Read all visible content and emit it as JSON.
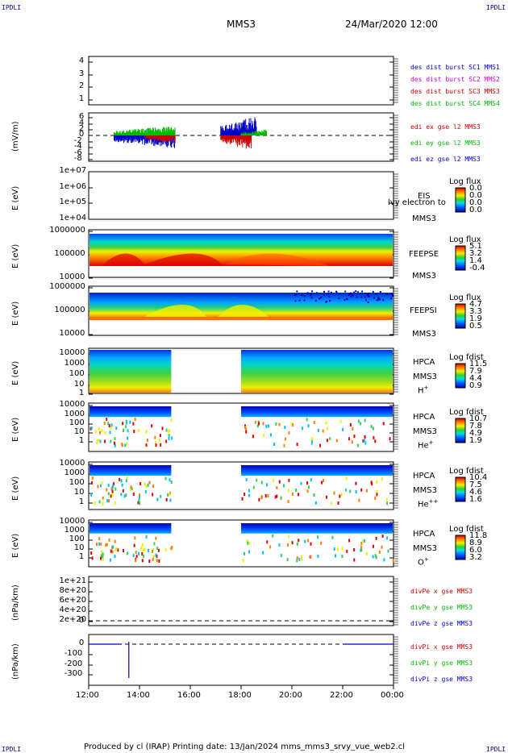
{
  "header": {
    "corner_tl": "IPDLI",
    "corner_tr": "IPDLI",
    "corner_bl": "IPDLI",
    "corner_br": "IPDLI",
    "title": "MMS3",
    "datetime": "24/Mar/2020 12:00"
  },
  "footer": {
    "produced": "Produced by cl (IRAP)   Printing date: 13/Jan/2024   mms_mms3_srvy_vue_web2.cl"
  },
  "colors": {
    "mms1": "#0000cc",
    "mms2": "#cc00cc",
    "mms3": "#cc0000",
    "mms4": "#00bb00",
    "x": "#cc0000",
    "y": "#00bb00",
    "z": "#0000cc"
  },
  "xaxis": {
    "ticks": [
      "12:00",
      "14:00",
      "16:00",
      "18:00",
      "20:00",
      "22:00",
      "00:00"
    ],
    "range_hours": [
      12,
      24
    ]
  },
  "panels": {
    "dist": {
      "yticks": [
        "4",
        "3",
        "2",
        "1"
      ],
      "legend": [
        "des dist burst SC1 MMS1",
        "des dist burst SC2 MMS2",
        "des dist burst SC3 MMS3",
        "des dist burst SC4 MMS4"
      ]
    },
    "edi": {
      "ylabel": "(mV/m)",
      "yticks": [
        "6",
        "4",
        "2",
        "0",
        "-2",
        "-4",
        "-6",
        "-8"
      ],
      "legend": [
        "edi ex gse l2 MMS3",
        "edi ey gse l2 MMS3",
        "edi ez gse l2 MMS3"
      ]
    },
    "eis": {
      "ylabel": "E (eV)",
      "yticks": [
        "1e+07",
        "1e+06",
        "1e+05",
        "1e+04"
      ],
      "instr": "EIS",
      "overlay": "lvy electron to",
      "sc": "MMS3",
      "cb_title": "Log flux",
      "cb_vals": [
        "0.0",
        "0.0",
        "0.0",
        "0.0"
      ]
    },
    "feepse": {
      "ylabel": "E (eV)",
      "yticks": [
        "1000000",
        "100000",
        "10000"
      ],
      "instr": "FEEPSE",
      "sc": "MMS3",
      "cb_title": "Log flux",
      "cb_vals": [
        "5.1",
        "3.2",
        "1.4",
        "-0.4"
      ]
    },
    "feepsi": {
      "ylabel": "E (eV)",
      "yticks": [
        "1000000",
        "100000",
        "10000"
      ],
      "instr": "FEEPSI",
      "sc": "MMS3",
      "cb_title": "Log flux",
      "cb_vals": [
        "4.7",
        "3.3",
        "1.9",
        "0.5"
      ]
    },
    "hpca_h": {
      "ylabel": "E (eV)",
      "yticks": [
        "10000",
        "1000",
        "100",
        "10",
        "1"
      ],
      "instr": "HPCA",
      "sc": "MMS3",
      "species": "H",
      "charge": "+",
      "cb_title": "Log fdist",
      "cb_vals": [
        "11.5",
        "7.9",
        "4.4",
        "0.9"
      ]
    },
    "hpca_he": {
      "ylabel": "E (eV)",
      "yticks": [
        "10000",
        "1000",
        "100",
        "10",
        "1"
      ],
      "instr": "HPCA",
      "sc": "MMS3",
      "species": "He",
      "charge": "+",
      "cb_title": "Log fdist",
      "cb_vals": [
        "10.7",
        "7.8",
        "4.9",
        "1.9"
      ]
    },
    "hpca_hepp": {
      "ylabel": "E (eV)",
      "yticks": [
        "10000",
        "1000",
        "100",
        "10",
        "1"
      ],
      "instr": "HPCA",
      "sc": "MMS3",
      "species": "He",
      "charge": "++",
      "cb_title": "Log fdist",
      "cb_vals": [
        "10.4",
        "7.5",
        "4.6",
        "1.6"
      ]
    },
    "hpca_o": {
      "ylabel": "E (eV)",
      "yticks": [
        "10000",
        "1000",
        "100",
        "10",
        "1"
      ],
      "instr": "HPCA",
      "sc": "MMS3",
      "species": "O",
      "charge": "+",
      "cb_title": "Log fdist",
      "cb_vals": [
        "11.8",
        "8.9",
        "6.0",
        "3.2"
      ]
    },
    "divpe": {
      "ylabel": "(nPa/km)",
      "yticks": [
        "1e+21",
        "8e+20",
        "6e+20",
        "4e+20",
        "2e+20",
        "0"
      ],
      "legend": [
        "divPe x gse MMS3",
        "divPe y gse MMS3",
        "divPe z gse MMS3"
      ]
    },
    "divpi": {
      "ylabel": "(nPa/km)",
      "yticks": [
        "0",
        "-100",
        "-200",
        "-300"
      ],
      "legend": [
        "divPi x gse MMS3",
        "divPi y gse MMS3",
        "divPi z gse MMS3"
      ]
    }
  },
  "chart_data": {
    "type": "heatmap",
    "x": [
      "12:00",
      "14:00",
      "16:00",
      "18:00",
      "20:00",
      "22:00",
      "00:00"
    ],
    "hpca_data_gap": [
      "15:15",
      "18:00"
    ],
    "divpi_spike": {
      "time": "13:35",
      "value": -330
    }
  }
}
